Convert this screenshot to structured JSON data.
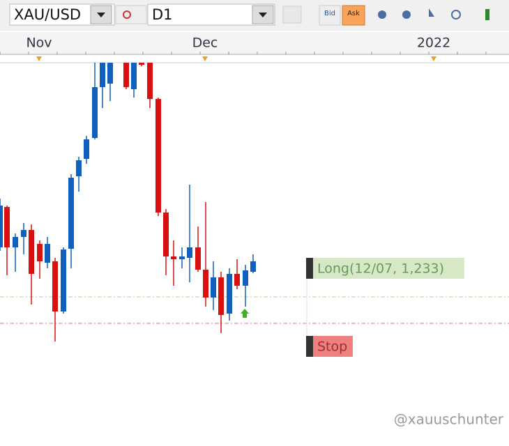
{
  "toolbar": {
    "symbol": "XAU/USD",
    "timeframe": "D1",
    "bid": "Bid",
    "ask": "Ask"
  },
  "time_axis": [
    "Nov",
    "Dec",
    "2022"
  ],
  "orders": {
    "long": "Long(12/07, 1,233)",
    "stop": "Stop"
  },
  "watermark": "@xauuschunter"
}
